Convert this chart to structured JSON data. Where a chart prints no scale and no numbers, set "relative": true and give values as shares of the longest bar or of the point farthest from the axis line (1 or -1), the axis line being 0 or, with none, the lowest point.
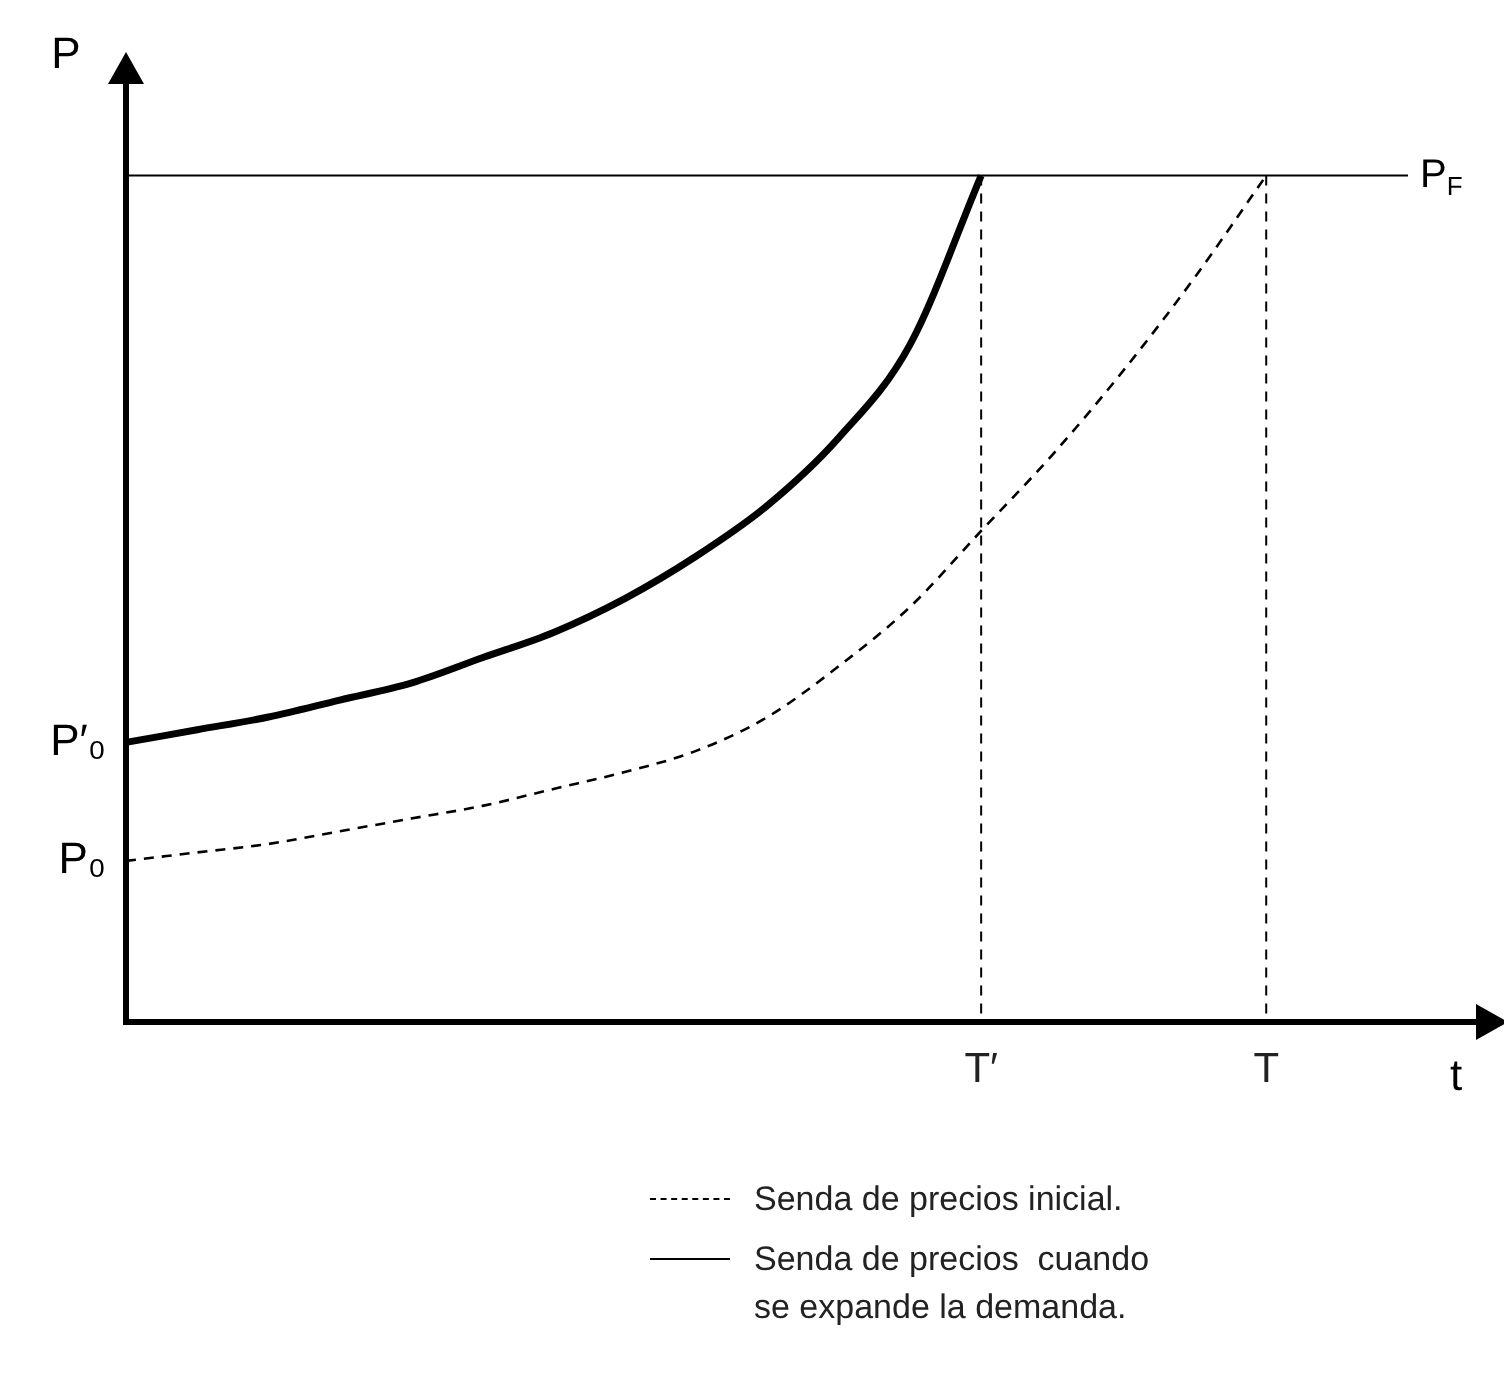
{
  "chart_data": {
    "type": "line",
    "relative": true,
    "xlabel": "t",
    "ylabel": "P",
    "categories": [
      null,
      null,
      null,
      null,
      null,
      null,
      null,
      null,
      null,
      null,
      null,
      null,
      "T′",
      null,
      null,
      null,
      "T",
      null,
      null,
      null
    ],
    "series": [
      {
        "name": "Senda de precios inicial.",
        "color": "#000000",
        "line_style": "dashed",
        "values": [
          0.19,
          0.2,
          0.21,
          0.225,
          0.24,
          0.255,
          0.275,
          0.295,
          0.32,
          0.36,
          0.42,
          0.49,
          0.58,
          0.67,
          0.77,
          0.88,
          1.0,
          null,
          null,
          null
        ]
      },
      {
        "name": "Senda de precios  cuando se expande la demanda.",
        "color": "#000000",
        "line_style": "solid",
        "values": [
          0.33,
          0.345,
          0.36,
          0.38,
          0.4,
          0.43,
          0.46,
          0.5,
          0.55,
          0.61,
          0.69,
          0.8,
          1.0,
          null,
          null,
          null,
          null,
          null,
          null,
          null
        ]
      }
    ],
    "ref_lines": [
      {
        "axis": "y",
        "value": 1,
        "label": "P$_{F}$",
        "line_style": "solid"
      },
      {
        "axis": "x",
        "value": "T′",
        "line_style": "dashed"
      },
      {
        "axis": "x",
        "value": "T",
        "line_style": "dashed"
      }
    ],
    "annotations": [
      "P′₀",
      "P₀"
    ],
    "grid": false,
    "legend": "bottom",
    "marker": "none"
  }
}
